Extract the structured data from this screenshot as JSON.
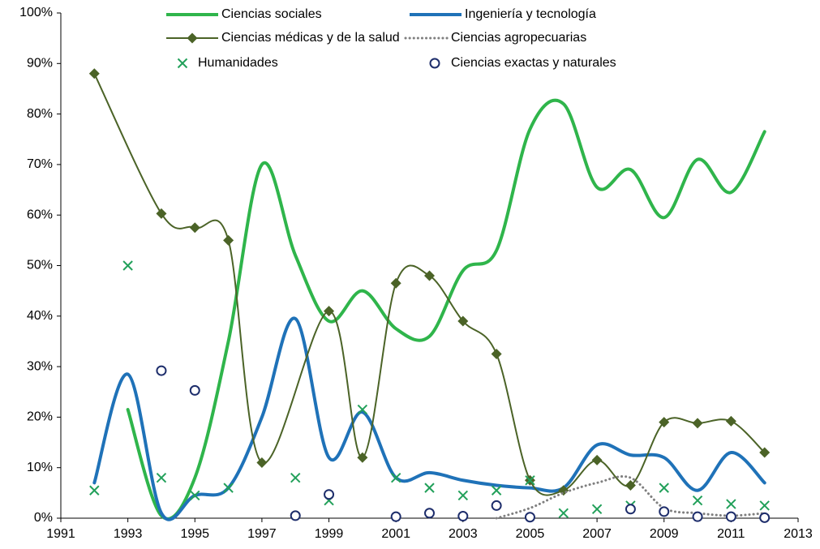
{
  "chart_data": {
    "type": "line",
    "legend": "top",
    "grid": false,
    "xlim": [
      1991,
      2013
    ],
    "xticks": [
      1991,
      1993,
      1995,
      1997,
      1999,
      2001,
      2003,
      2005,
      2007,
      2009,
      2011,
      2013
    ],
    "ylim": [
      0,
      100
    ],
    "yticks": [
      {
        "value": 0,
        "label": "0%"
      },
      {
        "value": 10,
        "label": "10%"
      },
      {
        "value": 20,
        "label": "20%"
      },
      {
        "value": 30,
        "label": "30%"
      },
      {
        "value": 40,
        "label": "40%"
      },
      {
        "value": 50,
        "label": "50%"
      },
      {
        "value": 60,
        "label": "60%"
      },
      {
        "value": 70,
        "label": "70%"
      },
      {
        "value": 80,
        "label": "80%"
      },
      {
        "value": 90,
        "label": "90%"
      },
      {
        "value": 100,
        "label": "100%"
      }
    ],
    "series": [
      {
        "name": "Ciencias sociales",
        "color": "#2fb54b",
        "style": "line",
        "x": [
          1993,
          1994,
          1995,
          1996,
          1997,
          1998,
          1999,
          2000,
          2001,
          2002,
          2003,
          2004,
          2005,
          2006,
          2007,
          2008,
          2009,
          2010,
          2011,
          2012
        ],
        "values": [
          21.5,
          0.5,
          8,
          35,
          70,
          52,
          39,
          45,
          37.5,
          36,
          49,
          53,
          77,
          82,
          65.5,
          69,
          59.5,
          71,
          64.5,
          76.5
        ]
      },
      {
        "name": "Ingeniería y tecnología",
        "color": "#1f72b8",
        "style": "line",
        "x": [
          1992,
          1993,
          1994,
          1995,
          1996,
          1997,
          1998,
          1999,
          2000,
          2001,
          2002,
          2003,
          2004,
          2005,
          2006,
          2007,
          2008,
          2009,
          2010,
          2011,
          2012
        ],
        "values": [
          7,
          28.5,
          1,
          4.5,
          6,
          20,
          39.5,
          12,
          21,
          8,
          9,
          7.5,
          6.5,
          6,
          6,
          14.5,
          12.5,
          12,
          5.5,
          13,
          7
        ]
      },
      {
        "name": "Ciencias médicas y de la salud",
        "color": "#4b6327",
        "style": "line-diamond",
        "x": [
          1992,
          1994,
          1995,
          1996,
          1997,
          1999,
          2000,
          2001,
          2002,
          2003,
          2004,
          2005,
          2006,
          2007,
          2008,
          2009,
          2010,
          2011,
          2012
        ],
        "values": [
          88,
          60.3,
          57.5,
          55,
          11,
          41,
          12,
          46.5,
          48,
          39,
          32.5,
          7.5,
          5.5,
          11.5,
          6.5,
          19,
          18.8,
          19.2,
          13
        ]
      },
      {
        "name": "Ciencias agropecuarias",
        "color": "#7f7f7f",
        "style": "dotted",
        "x": [
          2004,
          2005,
          2006,
          2007,
          2008,
          2009,
          2010,
          2011,
          2012
        ],
        "values": [
          0,
          2,
          5,
          7,
          8,
          2,
          1,
          0.5,
          1
        ]
      },
      {
        "name": "Humanidades",
        "color": "#22a05a",
        "style": "cross",
        "x": [
          1992,
          1993,
          1994,
          1995,
          1996,
          1998,
          1999,
          2000,
          2001,
          2002,
          2003,
          2004,
          2005,
          2006,
          2007,
          2008,
          2009,
          2010,
          2011,
          2012
        ],
        "values": [
          5.5,
          50,
          8,
          4.5,
          6,
          8,
          3.5,
          21.5,
          8,
          6,
          4.5,
          5.5,
          7.5,
          1,
          1.8,
          2.5,
          6,
          3.5,
          2.8,
          2.5
        ]
      },
      {
        "name": "Ciencias exactas y naturales",
        "color": "#1d2d6b",
        "style": "circle",
        "x": [
          1994,
          1995,
          1998,
          1999,
          2001,
          2002,
          2003,
          2004,
          2005,
          2008,
          2009,
          2010,
          2011,
          2012
        ],
        "values": [
          29.2,
          25.3,
          0.5,
          4.7,
          0.3,
          1,
          0.4,
          2.5,
          0.2,
          1.8,
          1.3,
          0.3,
          0.3,
          0.1
        ]
      }
    ]
  }
}
